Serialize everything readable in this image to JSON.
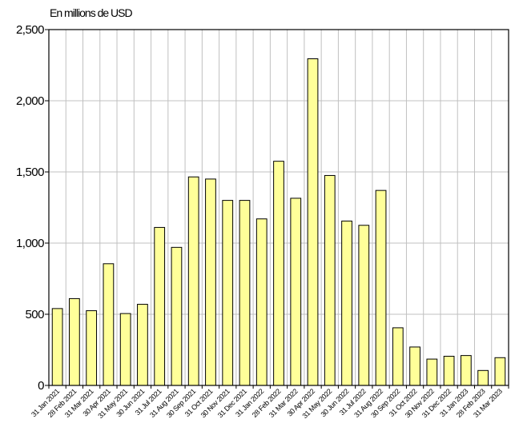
{
  "chart_data": {
    "type": "bar",
    "unit_label": "En millions de USD",
    "categories": [
      "31 Jan 2021",
      "28 Feb 2021",
      "31 Mar 2021",
      "30 Apr 2021",
      "31 May 2021",
      "30 Jun 2021",
      "31 Jul 2021",
      "31 Aug 2021",
      "30 Sep 2021",
      "31 Oct 2021",
      "30 Nov 2021",
      "31 Dec 2021",
      "31 Jan 2022",
      "28 Feb 2022",
      "31 Mar 2022",
      "30 Apr 2022",
      "31 May 2022",
      "30 Jun 2022",
      "31 Jul 2022",
      "31 Aug 2022",
      "30 Sep 2022",
      "31 Oct 2022",
      "30 Nov 2022",
      "31 Dec 2022",
      "31 Jan 2023",
      "28 Feb 2023",
      "31 Mar 2023"
    ],
    "values": [
      540,
      610,
      525,
      855,
      505,
      570,
      1110,
      970,
      1465,
      1450,
      1300,
      1300,
      1170,
      1575,
      1315,
      2295,
      1475,
      1155,
      1125,
      1370,
      405,
      270,
      185,
      205,
      210,
      105,
      195
    ],
    "ylim": [
      0,
      2500
    ],
    "yticks": [
      0,
      500,
      1000,
      1500,
      2000,
      2500
    ],
    "ytick_labels": [
      "0",
      "500",
      "1,000",
      "1,500",
      "2,000",
      "2,500"
    ],
    "grid": true,
    "bar_color": "#ffff99",
    "bar_edge_color": "#000000",
    "grid_color": "#c0c0c0"
  }
}
